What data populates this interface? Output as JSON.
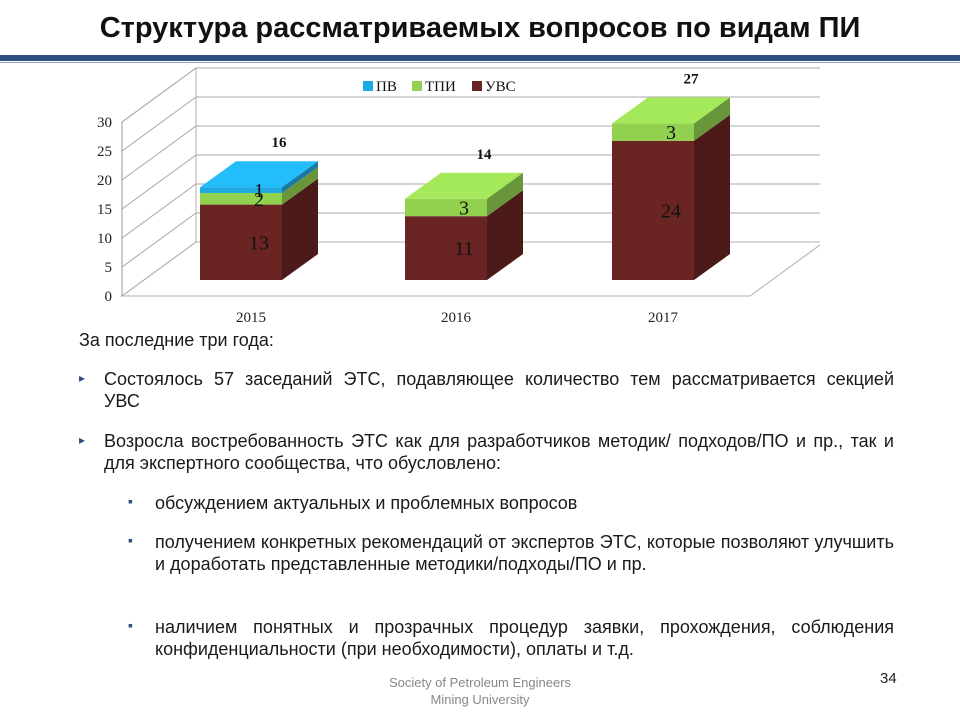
{
  "slide": {
    "title": "Структура рассматриваемых вопросов по видам ПИ",
    "intro": "За последние три года:",
    "bullets": [
      "Состоялось 57 заседаний ЭТС, подавляющее количество тем рассматривается секцией УВС",
      "Возросла востребованность ЭТС как для разработчиков методик/ подходов/ПО и пр., так и для экспертного сообщества, что обусловлено:"
    ],
    "sub_bullets": [
      "обсуждением актуальных и проблемных вопросов",
      "получением конкретных рекомендаций от экспертов ЭТС, которые позволяют улучшить и доработать представленные методики/подходы/ПО и пр.",
      "наличием понятных и прозрачных процедур заявки, прохождения, соблюдения конфиденциальности (при необходимости), оплаты и т.д."
    ],
    "footer_line1": "Society of Petroleum Engineers",
    "footer_line2": "Mining University",
    "page_number": "34"
  },
  "chart_data": {
    "type": "bar",
    "stacked": true,
    "three_d": true,
    "categories": [
      "2015",
      "2016",
      "2017"
    ],
    "series": [
      {
        "name": "УВС",
        "values": [
          13,
          11,
          24
        ],
        "color": "#6b2424"
      },
      {
        "name": "ТПИ",
        "values": [
          2,
          3,
          3
        ],
        "color": "#92d050"
      },
      {
        "name": "ПВ",
        "values": [
          1,
          0,
          0
        ],
        "color": "#1fa9e1"
      }
    ],
    "totals": [
      "16",
      "14",
      "27"
    ],
    "yticks": [
      "0",
      "5",
      "10",
      "15",
      "20",
      "25",
      "30"
    ],
    "ylim": [
      0,
      30
    ],
    "grid": true,
    "legend_position": "top"
  }
}
